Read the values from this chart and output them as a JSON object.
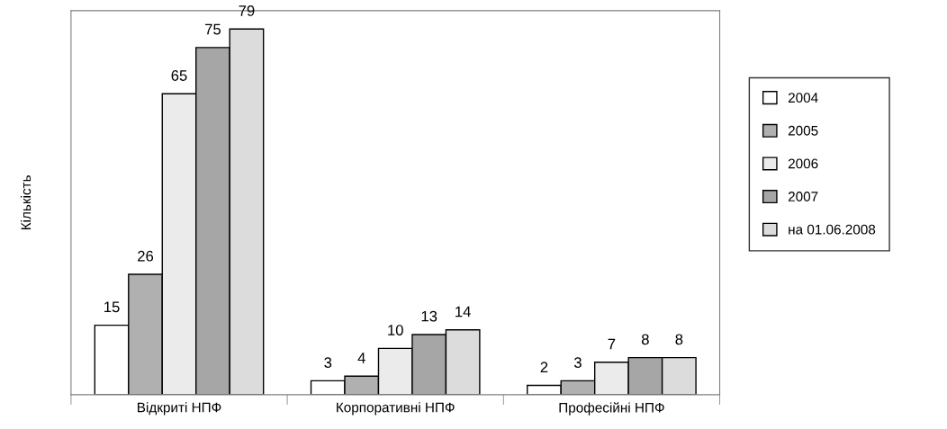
{
  "chart_data": {
    "type": "bar",
    "ylabel": "Кількість",
    "categories": [
      "Відкриті НПФ",
      "Корпоративні НПФ",
      "Професійні НПФ"
    ],
    "series": [
      {
        "name": "2004",
        "color": "#ffffff",
        "values": [
          15,
          3,
          2
        ]
      },
      {
        "name": "2005",
        "color": "#b0b0b0",
        "values": [
          26,
          4,
          3
        ]
      },
      {
        "name": "2006",
        "color": "#ebebeb",
        "values": [
          65,
          10,
          7
        ]
      },
      {
        "name": "2007",
        "color": "#a6a6a6",
        "values": [
          75,
          13,
          8
        ]
      },
      {
        "name": "на 01.06.2008",
        "color": "#dcdcdc",
        "values": [
          79,
          14,
          8
        ]
      }
    ],
    "data_labels": true,
    "legend": "right",
    "grid": false
  }
}
